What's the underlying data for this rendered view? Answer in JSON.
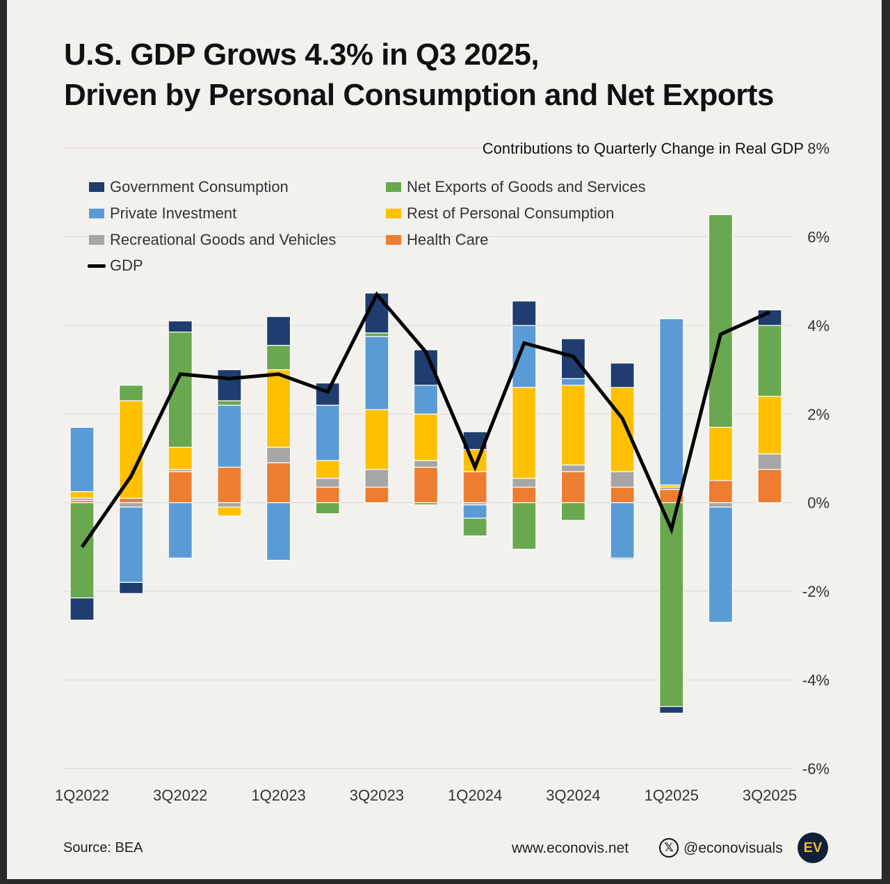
{
  "header": {
    "title_line1": "U.S. GDP Grows 4.3% in Q3 2025,",
    "title_line2": "Driven by Personal Consumption and Net Exports"
  },
  "footer": {
    "source": "Source: BEA",
    "website": "www.econovis.net",
    "social_handle": "@econovisuals",
    "logo_text": "EV"
  },
  "colors": {
    "government": "#1f3d6e",
    "net_exports": "#6aa84f",
    "private_investment": "#5b9bd5",
    "rest_consumption": "#ffc000",
    "recreational": "#a6a6a6",
    "health_care": "#ed7d31",
    "gdp": "#000000"
  },
  "chart_data": {
    "type": "bar",
    "stacked": true,
    "title": "Contributions to Quarterly Change in Real GDP",
    "x_ticks": [
      "1Q2022",
      "3Q2022",
      "1Q2023",
      "3Q2023",
      "1Q2024",
      "3Q2024",
      "1Q2025",
      "3Q2025"
    ],
    "categories": [
      "1Q2022",
      "2Q2022",
      "3Q2022",
      "4Q2022",
      "1Q2023",
      "2Q2023",
      "3Q2023",
      "4Q2023",
      "1Q2024",
      "2Q2024",
      "3Q2024",
      "4Q2024",
      "1Q2025",
      "2Q2025",
      "3Q2025"
    ],
    "y_ticks": [
      "8%",
      "6%",
      "4%",
      "2%",
      "0%",
      "-2%",
      "-4%",
      "-6%"
    ],
    "ylim": [
      -6,
      8
    ],
    "y_axis_side": "right",
    "legend_position": "top-left",
    "grid": true,
    "series": [
      {
        "name": "Health Care",
        "key": "health_care",
        "values": [
          0.05,
          0.1,
          0.7,
          0.8,
          0.9,
          0.35,
          0.35,
          0.8,
          0.7,
          0.35,
          0.7,
          0.35,
          0.3,
          0.5,
          0.75
        ]
      },
      {
        "name": "Recreational Goods and Vehicles",
        "key": "recreational",
        "values": [
          0.05,
          -0.1,
          0.05,
          -0.1,
          0.35,
          0.2,
          0.4,
          0.15,
          -0.05,
          0.2,
          0.15,
          0.35,
          0.05,
          -0.1,
          0.35
        ]
      },
      {
        "name": "Rest of Personal Consumption",
        "key": "rest_consumption",
        "values": [
          0.15,
          2.2,
          0.5,
          -0.2,
          1.75,
          0.4,
          1.35,
          1.05,
          0.5,
          2.05,
          1.8,
          1.9,
          0.05,
          1.2,
          1.3
        ]
      },
      {
        "name": "Private Investment",
        "key": "private_investment",
        "values": [
          1.45,
          -1.7,
          -1.25,
          1.4,
          -1.3,
          1.25,
          1.65,
          0.65,
          -0.3,
          1.4,
          0.15,
          -1.25,
          3.75,
          -2.6,
          0
        ]
      },
      {
        "name": "Net Exports of Goods and Services",
        "key": "net_exports",
        "values": [
          -2.15,
          0.35,
          2.6,
          0.1,
          0.55,
          -0.25,
          0.08,
          -0.05,
          -0.4,
          -1.05,
          -0.4,
          -0.03,
          -4.6,
          4.8,
          1.6
        ]
      },
      {
        "name": "Government Consumption",
        "key": "government",
        "values": [
          -0.5,
          -0.25,
          0.25,
          0.7,
          0.65,
          0.5,
          0.9,
          0.8,
          0.4,
          0.55,
          0.9,
          0.55,
          -0.15,
          0,
          0.35
        ]
      }
    ],
    "line": {
      "name": "GDP",
      "values": [
        -1.0,
        0.6,
        2.9,
        2.8,
        2.9,
        2.5,
        4.7,
        3.4,
        0.8,
        3.6,
        3.3,
        1.9,
        -0.6,
        3.8,
        4.3
      ]
    }
  }
}
